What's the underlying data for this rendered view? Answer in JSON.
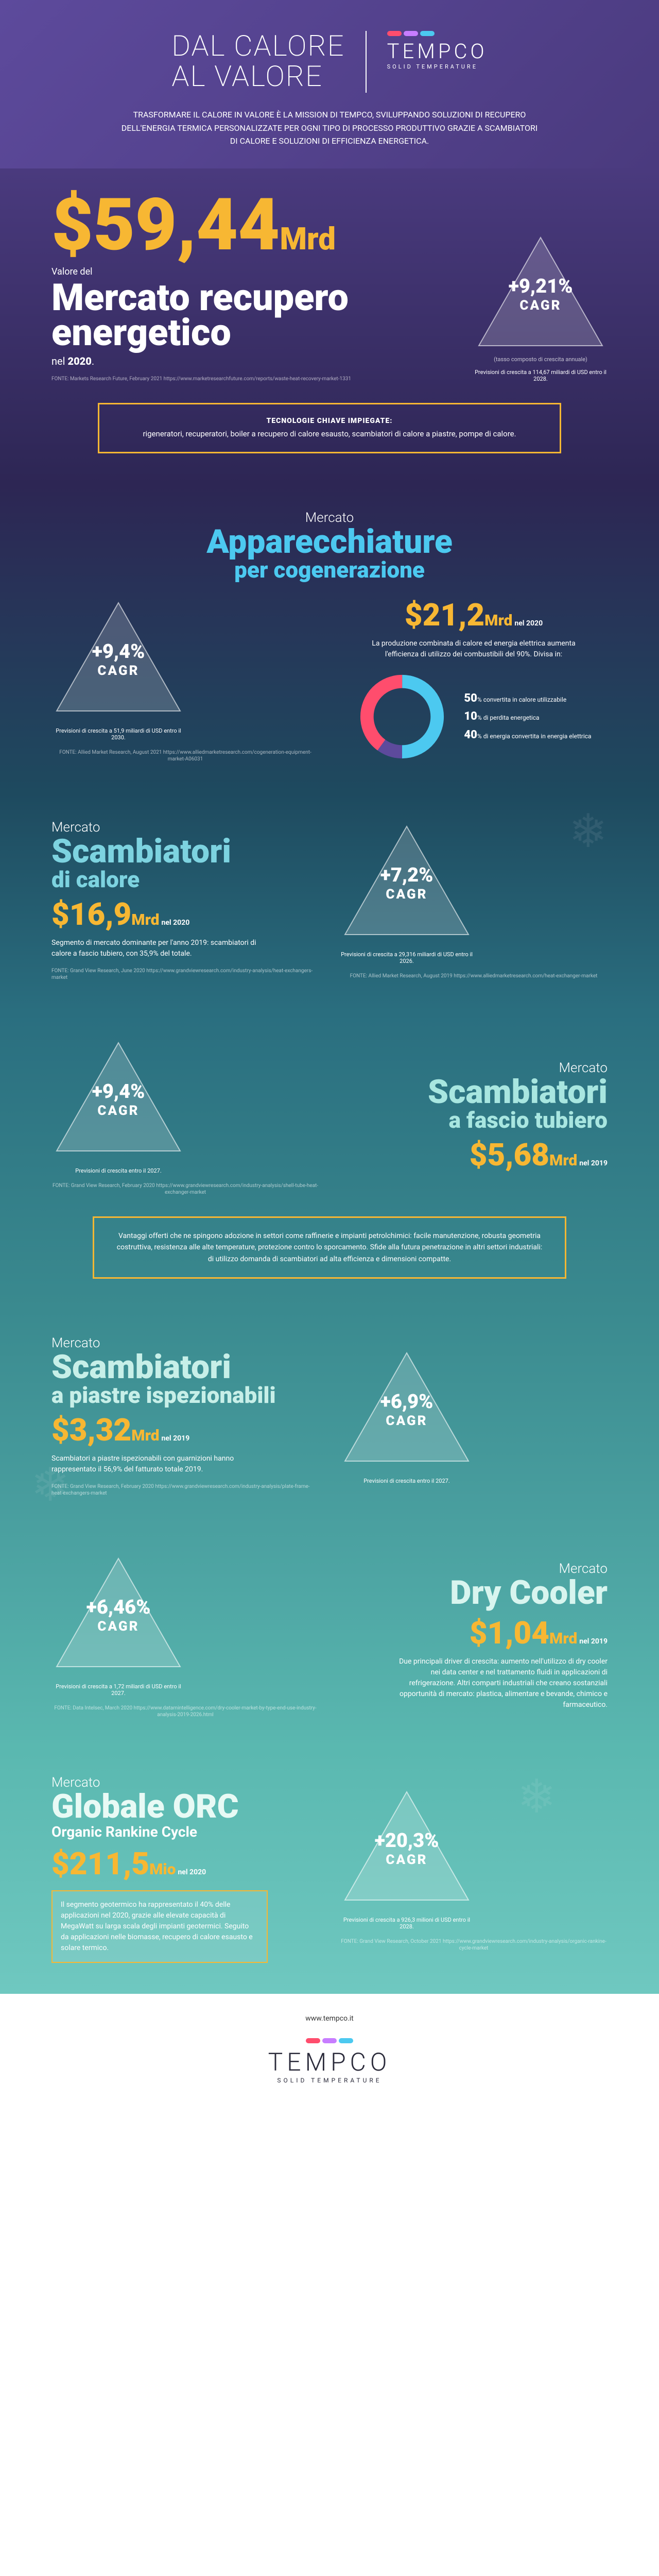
{
  "brand": {
    "name": "TEMPCO",
    "tagline": "SOLID TEMPERATURE",
    "wave_colors": [
      "#ff4d6d",
      "#c77dff",
      "#4cc9f0"
    ],
    "url": "www.tempco.it"
  },
  "header": {
    "headline": "DAL CALORE\nAL VALORE",
    "intro": "TRASFORMARE IL CALORE IN VALORE È LA MISSION DI TEMPCO, SVILUPPANDO SOLUZIONI DI RECUPERO DELL'ENERGIA TERMICA PERSONALIZZATE PER OGNI TIPO DI PROCESSO PRODUTTIVO GRAZIE A SCAMBIATORI DI CALORE E SOLUZIONI DI EFFICIENZA ENERGETICA."
  },
  "hero": {
    "value": "$59,44",
    "unit": "Mrd",
    "line1": "Valore del",
    "title": "Mercato recupero energetico",
    "year_label": "nel",
    "year": "2020",
    "source": "FONTE: Markets Research Future, February 2021\nhttps://www.marketresearchfuture.com/reports/waste-heat-recovery-market-1331",
    "cagr": {
      "pct": "+9,21%",
      "label": "CAGR",
      "note": "(tasso composto di crescita annuale)",
      "desc": "Previsioni di crescita a 114,67 miliardi di USD entro il 2028."
    },
    "key_tech": {
      "title": "TECNOLOGIE CHIAVE IMPIEGATE:",
      "body": "rigeneratori, recuperatori, boiler a recupero di calore esausto, scambiatori di calore a piastre, pompe di calore."
    }
  },
  "cogen": {
    "m_label": "Mercato",
    "m_title": "Apparecchiature",
    "m_title2": "per cogenerazione",
    "value": "$21,2",
    "unit": "Mrd",
    "year": "nel 2020",
    "desc": "La produzione combinata di calore ed energia elettrica aumenta l'efficienza di utilizzo dei combustibili del 90%. Divisa in:",
    "cagr": {
      "pct": "+9,4%",
      "label": "CAGR",
      "desc": "Previsioni di crescita a 51,9 miliardi di USD entro il 2030."
    },
    "source": "FONTE: Allied Market Research, August 2021\nhttps://www.alliedmarketresearch.com/cogeneration-equipment-market-A06031",
    "donut": {
      "slices": [
        {
          "pct": 50,
          "color": "#4cc9f0",
          "label": "convertita in calore utilizzabile"
        },
        {
          "pct": 10,
          "color": "#5d4a9c",
          "label": "di perdita energetica"
        },
        {
          "pct": 40,
          "color": "#ff4d6d",
          "label": "di energia convertita in energia elettrica"
        }
      ]
    }
  },
  "heatex": {
    "m_label": "Mercato",
    "m_title": "Scambiatori",
    "m_title2": "di calore",
    "value": "$16,9",
    "unit": "Mrd",
    "year": "nel 2020",
    "desc": "Segmento di mercato dominante per l'anno 2019: scambiatori di calore a fascio tubiero, con 35,9% del totale.",
    "source": "FONTE: Grand View Research, June 2020\nhttps://www.grandviewresearch.com/industry-analysis/heat-exchangers-market",
    "cagr": {
      "pct": "+7,2%",
      "label": "CAGR",
      "desc": "Previsioni di crescita a 29,316 miliardi di USD entro il 2026.",
      "source": "FONTE: Allied Market Research, August 2019\nhttps://www.alliedmarketresearch.com/heat-exchanger-market"
    }
  },
  "shelltube": {
    "m_label": "Mercato",
    "m_title": "Scambiatori",
    "m_title2": "a fascio tubiero",
    "value": "$5,68",
    "unit": "Mrd",
    "year": "nel 2019",
    "cagr": {
      "pct": "+9,4%",
      "label": "CAGR",
      "desc": "Previsioni di crescita entro il 2027.",
      "source": "FONTE: Grand View Research, February 2020\nhttps://www.grandviewresearch.com/industry-analysis/shell-tube-heat-exchanger-market"
    },
    "adv": "Vantaggi offerti che ne spingono adozione in settori come raffinerie e impianti petrolchimici: facile manutenzione, robusta geometria costruttiva, resistenza alle alte temperature, protezione contro lo sporcamento. Sfide alla futura penetrazione in altri settori industriali: di utilizzo domanda di scambiatori ad alta efficienza e dimensioni compatte."
  },
  "plate": {
    "m_label": "Mercato",
    "m_title": "Scambiatori",
    "m_title2": "a piastre ispezionabili",
    "value": "$3,32",
    "unit": "Mrd",
    "year": "nel 2019",
    "desc": "Scambiatori a piastre ispezionabili con guarnizioni hanno rappresentato il 56,9% del fatturato totale 2019.",
    "source": "FONTE: Grand View Research, February 2020\nhttps://www.grandviewresearch.com/industry-analysis/plate-frame-heat-exchangers-market",
    "cagr": {
      "pct": "+6,9%",
      "label": "CAGR",
      "desc": "Previsioni di crescita entro il 2027."
    }
  },
  "drycooler": {
    "m_label": "Mercato",
    "m_title": "Dry Cooler",
    "value": "$1,04",
    "unit": "Mrd",
    "year": "nel 2019",
    "desc": "Due principali driver di crescita: aumento nell'utilizzo di dry cooler nei data center e nel trattamento fluidi in applicazioni di refrigerazione. Altri comparti industriali che creano sostanziali opportunità di mercato: plastica, alimentare e bevande, chimico e farmaceutico.",
    "cagr": {
      "pct": "+6,46%",
      "label": "CAGR",
      "desc": "Previsioni di crescita a 1,72 miliardi di USD entro il 2027.",
      "source": "FONTE: Data Intelsec, March 2020\nhttps://www.datamintelligence.com/dry-cooler-market-by-type-end-use-industry-analysis-2019-2026.html"
    }
  },
  "orc": {
    "m_label": "Mercato",
    "m_title": "Globale ORC",
    "m_sub": "Organic Rankine Cycle",
    "value": "$211,5",
    "unit": "Mio",
    "year": "nel 2020",
    "desc": "Il segmento geotermico ha rappresentato il 40% delle applicazioni nel 2020, grazie alle elevate capacità di MegaWatt su larga scala degli impianti geotermici. Seguito da applicazioni nelle biomasse, recupero di calore esausto e solare termico.",
    "cagr": {
      "pct": "+20,3%",
      "label": "CAGR",
      "desc": "Previsioni di crescita a 926,3 milioni di USD entro il 2028.",
      "source": "FONTE: Grand View Research, October 2021\nhttps://www.grandviewresearch.com/industry-analysis/organic-rankine-cycle-market"
    }
  },
  "colors": {
    "accent": "#f7b733",
    "tri_fill": "rgba(255,255,255,0.18)",
    "tri_stroke": "rgba(255,255,255,0.6)"
  }
}
